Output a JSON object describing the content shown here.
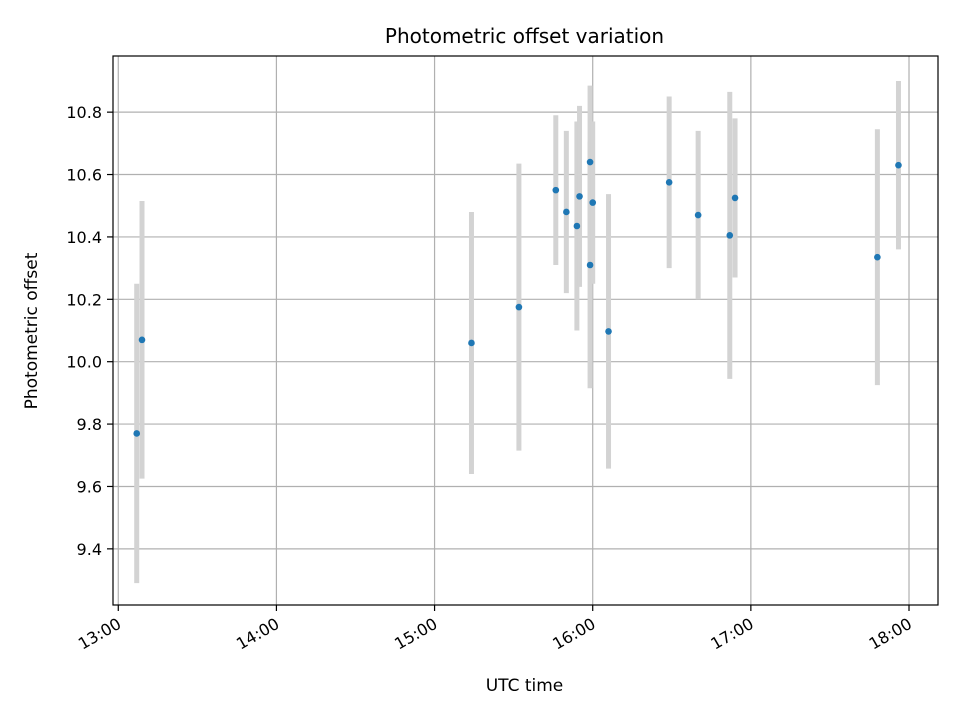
{
  "chart_data": {
    "type": "scatter",
    "title": "Photometric offset variation",
    "xlabel": "UTC time",
    "ylabel": "Photometric offset",
    "x_tick_labels": [
      "13:00",
      "14:00",
      "15:00",
      "16:00",
      "17:00",
      "18:00"
    ],
    "y_tick_labels": [
      "9.4",
      "9.6",
      "9.8",
      "10.0",
      "10.2",
      "10.4",
      "10.6",
      "10.8"
    ],
    "xlim": [
      "12:58",
      "18:11"
    ],
    "ylim": [
      9.22,
      10.98
    ],
    "grid": true,
    "colors": {
      "point": "#1f77b4",
      "errorbar": "#d3d3d3",
      "grid": "#b0b0b0"
    },
    "points": [
      {
        "x": "13:07",
        "y": 9.77,
        "yerr": 0.48
      },
      {
        "x": "13:09",
        "y": 10.07,
        "yerr": 0.445
      },
      {
        "x": "15:14",
        "y": 10.06,
        "yerr": 0.42
      },
      {
        "x": "15:32",
        "y": 10.175,
        "yerr": 0.46
      },
      {
        "x": "15:46",
        "y": 10.55,
        "yerr": 0.24
      },
      {
        "x": "15:50",
        "y": 10.48,
        "yerr": 0.26
      },
      {
        "x": "15:54",
        "y": 10.435,
        "yerr": 0.335
      },
      {
        "x": "15:55",
        "y": 10.53,
        "yerr": 0.29
      },
      {
        "x": "15:59",
        "y": 10.31,
        "yerr": 0.395
      },
      {
        "x": "15:59",
        "y": 10.64,
        "yerr": 0.245
      },
      {
        "x": "16:00",
        "y": 10.51,
        "yerr": 0.26
      },
      {
        "x": "16:06",
        "y": 10.097,
        "yerr": 0.44
      },
      {
        "x": "16:29",
        "y": 10.575,
        "yerr": 0.275
      },
      {
        "x": "16:40",
        "y": 10.47,
        "yerr": 0.27
      },
      {
        "x": "16:52",
        "y": 10.405,
        "yerr": 0.46
      },
      {
        "x": "16:54",
        "y": 10.525,
        "yerr": 0.255
      },
      {
        "x": "17:48",
        "y": 10.335,
        "yerr": 0.41
      },
      {
        "x": "17:56",
        "y": 10.63,
        "yerr": 0.27
      }
    ]
  }
}
